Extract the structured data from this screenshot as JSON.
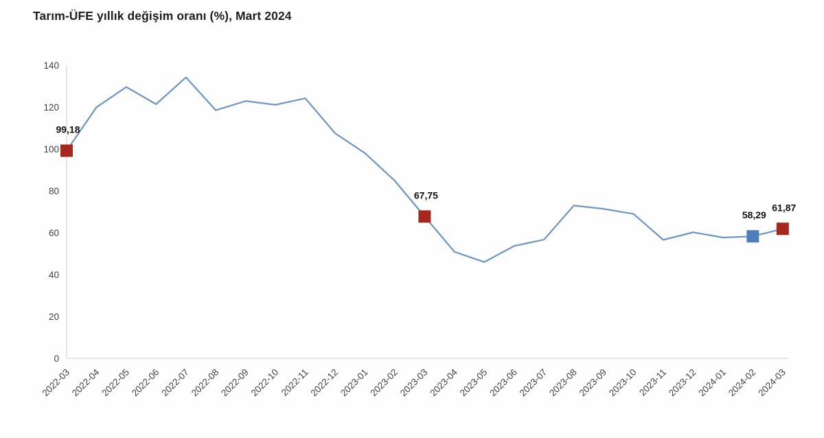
{
  "page": {
    "background_color": "#fefefe"
  },
  "chart_data": {
    "type": "line",
    "title": "Tarım-ÜFE yıllık değişim oranı (%), Mart 2024",
    "xlabel": "",
    "ylabel": "",
    "categories": [
      "2022-03",
      "2022-04",
      "2022-05",
      "2022-06",
      "2022-07",
      "2022-08",
      "2022-09",
      "2022-10",
      "2022-11",
      "2022-12",
      "2023-01",
      "2023-02",
      "2023-03",
      "2023-04",
      "2023-05",
      "2023-06",
      "2023-07",
      "2023-08",
      "2023-09",
      "2023-10",
      "2023-11",
      "2023-12",
      "2024-01",
      "2024-02",
      "2024-03"
    ],
    "series": [
      {
        "name": "Tarım-ÜFE yıllık değişim oranı (%)",
        "values": [
          99.18,
          119.9,
          129.6,
          121.4,
          134.2,
          118.5,
          122.9,
          121.1,
          124.2,
          107.5,
          98.0,
          84.8,
          67.75,
          50.9,
          46.0,
          53.7,
          56.7,
          73.0,
          71.4,
          69.0,
          56.6,
          60.2,
          57.7,
          58.29,
          61.87
        ]
      }
    ],
    "ylim": [
      0,
      140
    ],
    "yticks": [
      0,
      20,
      40,
      60,
      80,
      100,
      120,
      140
    ],
    "grid": false,
    "legend_position": "none",
    "line_color": "#6e96c4",
    "axis_line_color": "#d9d9d9",
    "tick_label_color": "#404040",
    "data_label_color": "#111111",
    "annotated_points": [
      {
        "category": "2022-03",
        "value": 99.18,
        "label": "99,18",
        "marker_color": "#a5281e"
      },
      {
        "category": "2023-03",
        "value": 67.75,
        "label": "67,75",
        "marker_color": "#a5281e"
      },
      {
        "category": "2024-02",
        "value": 58.29,
        "label": "58,29",
        "marker_color": "#4d7dbb"
      },
      {
        "category": "2024-03",
        "value": 61.87,
        "label": "61,87",
        "marker_color": "#a5281e"
      }
    ]
  }
}
